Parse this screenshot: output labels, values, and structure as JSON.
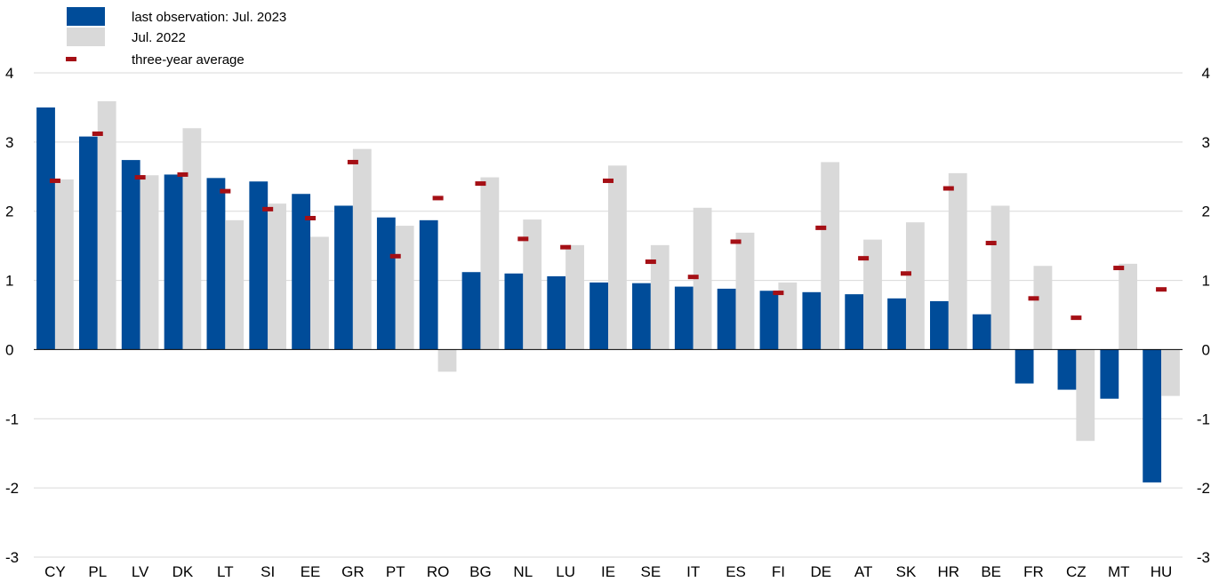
{
  "chart_data": {
    "type": "bar",
    "categories": [
      "CY",
      "PL",
      "LV",
      "DK",
      "LT",
      "SI",
      "EE",
      "GR",
      "PT",
      "RO",
      "BG",
      "NL",
      "LU",
      "IE",
      "SE",
      "IT",
      "ES",
      "FI",
      "DE",
      "AT",
      "SK",
      "HR",
      "BE",
      "FR",
      "CZ",
      "MT",
      "HU"
    ],
    "series": [
      {
        "name": "last observation: Jul. 2023",
        "type": "bar",
        "color": "#004c99",
        "values": [
          3.5,
          3.08,
          2.74,
          2.53,
          2.48,
          2.43,
          2.25,
          2.08,
          1.91,
          1.87,
          1.12,
          1.1,
          1.06,
          0.97,
          0.96,
          0.91,
          0.88,
          0.85,
          0.83,
          0.8,
          0.74,
          0.7,
          0.51,
          -0.49,
          -0.58,
          -0.71,
          -1.92
        ]
      },
      {
        "name": "Jul. 2022",
        "type": "bar",
        "color": "#d9d9d9",
        "values": [
          2.46,
          3.59,
          2.52,
          3.2,
          1.87,
          2.11,
          1.63,
          2.9,
          1.79,
          -0.32,
          2.49,
          1.88,
          1.51,
          2.66,
          1.51,
          2.05,
          1.69,
          0.97,
          2.71,
          1.59,
          1.84,
          2.55,
          2.08,
          1.21,
          -1.32,
          1.24,
          -0.67
        ]
      },
      {
        "name": "three-year average",
        "type": "marker",
        "color": "#a50f15",
        "values": [
          2.44,
          3.12,
          2.49,
          2.53,
          2.29,
          2.03,
          1.9,
          2.71,
          1.35,
          2.19,
          2.4,
          1.6,
          1.48,
          2.44,
          1.27,
          1.05,
          1.56,
          0.82,
          1.76,
          1.32,
          1.1,
          2.33,
          1.54,
          0.74,
          0.46,
          1.18,
          0.87
        ]
      }
    ],
    "ylim": [
      -3,
      4
    ],
    "yticks": [
      "-3",
      "-2",
      "-1",
      "0",
      "1",
      "2",
      "3",
      "4"
    ],
    "ytick_values": [
      -3,
      -2,
      -1,
      0,
      1,
      2,
      3,
      4
    ],
    "grid": true,
    "legend_position": "top-left",
    "xlabel": "",
    "ylabel": "",
    "title": ""
  }
}
